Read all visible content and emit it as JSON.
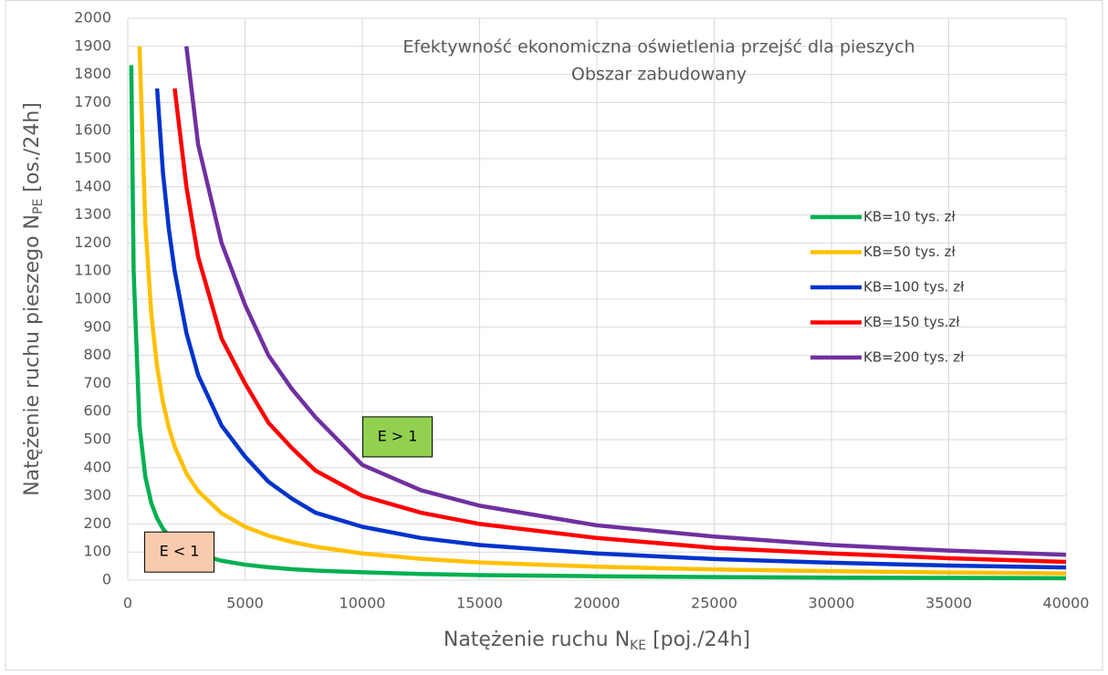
{
  "chart_data": {
    "type": "line",
    "title": [
      "Efektywność ekonomiczna oświetlenia przejść dla pieszych",
      "Obszar zabudowany"
    ],
    "xlabel": {
      "text": "Natężenie ruchu N",
      "sub": "KE",
      "suffix": " [poj./24h]"
    },
    "ylabel": {
      "text": "Natężenie ruchu pieszego N",
      "sub": "PE",
      "suffix": " [os./24h]"
    },
    "x": [
      150,
      250,
      500,
      750,
      1000,
      1250,
      1500,
      1750,
      2000,
      2500,
      3000,
      4000,
      5000,
      6000,
      7000,
      8000,
      10000,
      12500,
      15000,
      20000,
      25000,
      30000,
      35000,
      40000
    ],
    "series": [
      {
        "name": "KB=10 tys. zł",
        "color": "#00b050",
        "values": [
          1833,
          1100,
          550,
          367,
          275,
          220,
          183,
          157,
          138,
          110,
          92,
          69,
          55,
          46,
          39,
          34,
          28,
          22,
          18,
          14,
          11,
          9,
          8,
          7
        ]
      },
      {
        "name": "KB=50 tys. zł",
        "color": "#ffc000",
        "values": [
          null,
          null,
          1900,
          1267,
          950,
          760,
          633,
          543,
          475,
          380,
          317,
          238,
          190,
          158,
          136,
          119,
          95,
          76,
          63,
          48,
          38,
          32,
          27,
          24
        ]
      },
      {
        "name": "KB=100 tys. zł",
        "color": "#0033cc",
        "values": [
          null,
          null,
          null,
          null,
          null,
          1750,
          1450,
          1250,
          1100,
          880,
          730,
          550,
          440,
          350,
          290,
          240,
          190,
          150,
          125,
          95,
          75,
          62,
          52,
          45
        ]
      },
      {
        "name": "KB=150 tys.zł",
        "color": "#ff0000",
        "values": [
          null,
          null,
          null,
          null,
          null,
          null,
          null,
          null,
          1750,
          1400,
          1150,
          860,
          700,
          560,
          470,
          390,
          300,
          240,
          200,
          150,
          115,
          95,
          78,
          65
        ]
      },
      {
        "name": "KB=200 tys. zł",
        "color": "#7030a0",
        "values": [
          null,
          null,
          null,
          null,
          null,
          null,
          null,
          null,
          null,
          1900,
          1550,
          1200,
          980,
          800,
          680,
          580,
          410,
          320,
          265,
          195,
          155,
          125,
          105,
          90
        ]
      }
    ],
    "xlim": [
      0,
      40000
    ],
    "xticks": [
      0,
      5000,
      10000,
      15000,
      20000,
      25000,
      30000,
      35000,
      40000
    ],
    "ylim": [
      0,
      2000
    ],
    "yticks": [
      0,
      100,
      200,
      300,
      400,
      500,
      600,
      700,
      800,
      900,
      1000,
      1100,
      1200,
      1300,
      1400,
      1500,
      1600,
      1700,
      1800,
      1900,
      2000
    ],
    "grid": true,
    "legend": "right",
    "annotations": [
      {
        "text": "E > 1",
        "x": 11500,
        "y": 510,
        "color": "#92d050"
      },
      {
        "text": "E < 1",
        "x": 2200,
        "y": 100,
        "color": "#f8cbad"
      }
    ]
  }
}
